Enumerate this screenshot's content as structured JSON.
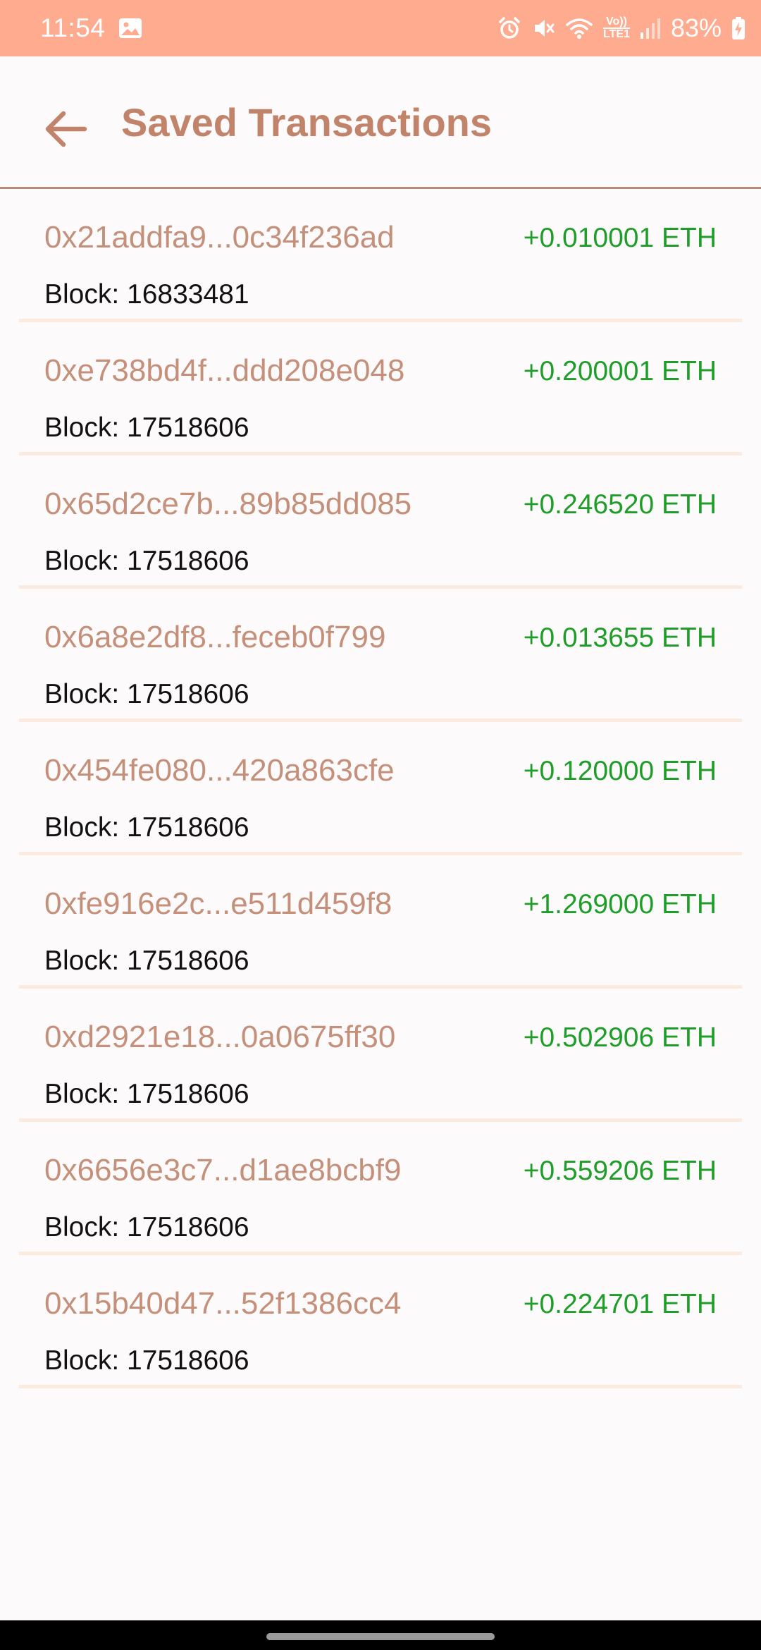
{
  "status_bar": {
    "time": "11:54",
    "battery": "83%",
    "icons": [
      "gallery-icon",
      "alarm-icon",
      "mute-icon",
      "wifi-icon",
      "volte-icon",
      "signal-icon",
      "battery-charging-icon"
    ],
    "volte_label_top": "Vo))",
    "volte_label_bottom": "LTE1"
  },
  "app_bar": {
    "title": "Saved Transactions",
    "back_icon": "arrow-back-icon"
  },
  "transactions": [
    {
      "hash": "0x21addfa9...0c34f236ad",
      "amount": "+0.010001 ETH",
      "block": "Block: 16833481"
    },
    {
      "hash": "0xe738bd4f...ddd208e048",
      "amount": "+0.200001 ETH",
      "block": "Block: 17518606"
    },
    {
      "hash": "0x65d2ce7b...89b85dd085",
      "amount": "+0.246520 ETH",
      "block": "Block: 17518606"
    },
    {
      "hash": "0x6a8e2df8...feceb0f799",
      "amount": "+0.013655 ETH",
      "block": "Block: 17518606"
    },
    {
      "hash": "0x454fe080...420a863cfe",
      "amount": "+0.120000 ETH",
      "block": "Block: 17518606"
    },
    {
      "hash": "0xfe916e2c...e511d459f8",
      "amount": "+1.269000 ETH",
      "block": "Block: 17518606"
    },
    {
      "hash": "0xd2921e18...0a0675ff30",
      "amount": "+0.502906 ETH",
      "block": "Block: 17518606"
    },
    {
      "hash": "0x6656e3c7...d1ae8bcbf9",
      "amount": "+0.559206 ETH",
      "block": "Block: 17518606"
    },
    {
      "hash": "0x15b40d47...52f1386cc4",
      "amount": "+0.224701 ETH",
      "block": "Block: 17518606"
    }
  ],
  "colors": {
    "status_bar": "#ffab90",
    "accent": "#c1846b",
    "hash_text": "#c5907a",
    "amount_positive": "#1e9e28",
    "divider": "#fbeade",
    "background": "#fdfafc"
  }
}
